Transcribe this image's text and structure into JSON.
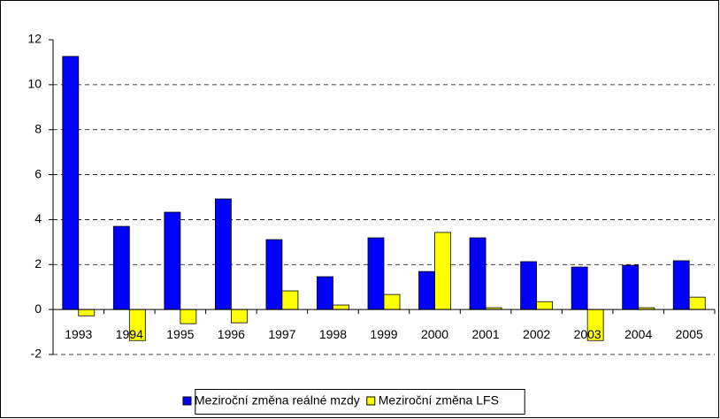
{
  "chart_data": {
    "type": "bar",
    "categories": [
      "1993",
      "1994",
      "1995",
      "1996",
      "1997",
      "1998",
      "1999",
      "2000",
      "2001",
      "2002",
      "2003",
      "2004",
      "2005"
    ],
    "series": [
      {
        "name": "Meziroční změna reálné mzdy",
        "color": "#0000ff",
        "values": [
          11.26,
          3.7,
          4.33,
          4.92,
          3.11,
          1.46,
          3.19,
          1.69,
          3.19,
          2.13,
          1.89,
          1.97,
          2.17
        ]
      },
      {
        "name": "Meziroční změna LFS",
        "color": "#ffff00",
        "values": [
          -0.28,
          -1.38,
          -0.63,
          -0.59,
          0.83,
          0.2,
          0.67,
          3.43,
          0.08,
          0.35,
          -1.38,
          0.08,
          0.55
        ]
      }
    ],
    "ylim": [
      -2,
      12
    ],
    "yticks": [
      -2,
      0,
      2,
      4,
      6,
      8,
      10,
      12
    ],
    "grid": true
  }
}
